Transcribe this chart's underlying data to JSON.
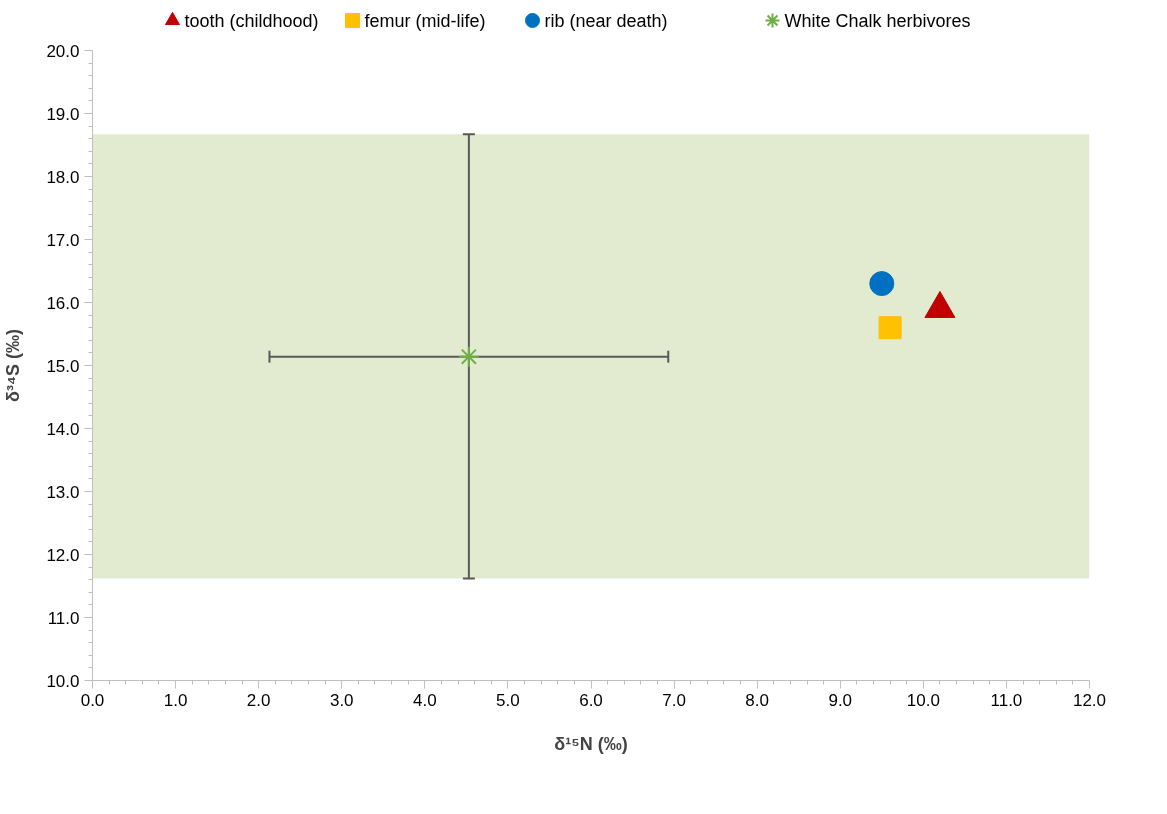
{
  "chart_data": {
    "type": "scatter",
    "xlabel": "δ¹⁵N (‰)",
    "ylabel": "δ³⁴S (‰)",
    "xlim": [
      0,
      12
    ],
    "ylim": [
      10,
      20
    ],
    "xticks": [
      {
        "value": 0,
        "label": "0.0"
      },
      {
        "value": 1,
        "label": "1.0"
      },
      {
        "value": 2,
        "label": "2.0"
      },
      {
        "value": 3,
        "label": "3.0"
      },
      {
        "value": 4,
        "label": "4.0"
      },
      {
        "value": 5,
        "label": "5.0"
      },
      {
        "value": 6,
        "label": "6.0"
      },
      {
        "value": 7,
        "label": "7.0"
      },
      {
        "value": 8,
        "label": "8.0"
      },
      {
        "value": 9,
        "label": "9.0"
      },
      {
        "value": 10,
        "label": "10.0"
      },
      {
        "value": 11,
        "label": "11.0"
      },
      {
        "value": 12,
        "label": "12.0"
      }
    ],
    "yticks": [
      {
        "value": 10,
        "label": "10.0"
      },
      {
        "value": 11,
        "label": "11.0"
      },
      {
        "value": 12,
        "label": "12.0"
      },
      {
        "value": 13,
        "label": "13.0"
      },
      {
        "value": 14,
        "label": "14.0"
      },
      {
        "value": 15,
        "label": "15.0"
      },
      {
        "value": 16,
        "label": "16.0"
      },
      {
        "value": 17,
        "label": "17.0"
      },
      {
        "value": 18,
        "label": "18.0"
      },
      {
        "value": 19,
        "label": "19.0"
      },
      {
        "value": 20,
        "label": "20.0"
      }
    ],
    "grid": false,
    "legend": "top",
    "bands": [
      {
        "axis": "y",
        "from": 11.62,
        "to": 18.67,
        "color": "#e2ebd0"
      }
    ],
    "series": [
      {
        "name": "tooth (childhood)",
        "color": "#c00000",
        "marker": "triangle",
        "x": [
          10.2
        ],
        "values": [
          15.9
        ]
      },
      {
        "name": "femur (mid-life)",
        "color": "#ffc000",
        "marker": "square",
        "x": [
          9.6
        ],
        "values": [
          15.6
        ]
      },
      {
        "name": "rib (near death)",
        "color": "#0070c0",
        "marker": "circle",
        "x": [
          9.5
        ],
        "values": [
          16.3
        ]
      },
      {
        "name": "White Chalk herbivores",
        "color": "#70ad47",
        "marker": "cross",
        "x": [
          4.53
        ],
        "values": [
          15.14
        ],
        "errors": [
          [
            11.62,
            18.67
          ]
        ],
        "xerrors": [
          [
            2.13,
            6.93
          ]
        ]
      }
    ]
  }
}
